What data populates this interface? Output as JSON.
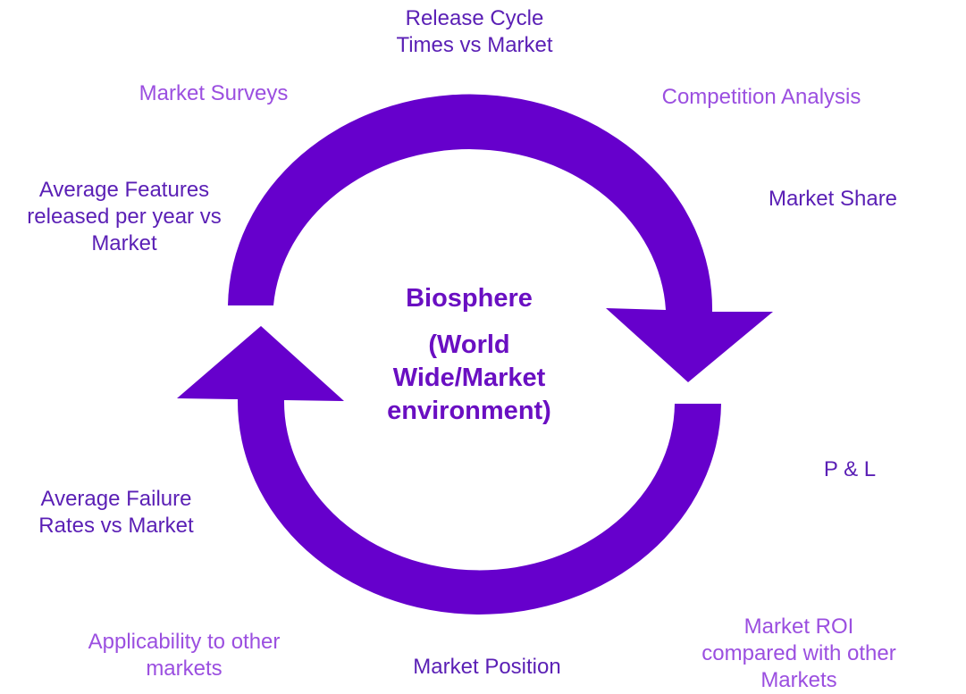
{
  "colors": {
    "arrow": "#6600cc",
    "label_dark": "#5a1fb5",
    "label_light": "#9b4fe0",
    "center_text": "#6a0fc2"
  },
  "center": {
    "title": "Biosphere",
    "subtitle": "(World\nWide/Market\nenvironment)"
  },
  "labels": {
    "release_cycle": "Release Cycle\nTimes vs Market",
    "market_surveys": "Market Surveys",
    "competition_analysis": "Competition Analysis",
    "avg_features": "Average Features\nreleased per year vs\nMarket",
    "market_share": "Market Share",
    "p_and_l": "P & L",
    "avg_failure": "Average Failure\nRates vs Market",
    "applicability": "Applicability to other\nmarkets",
    "market_position": "Market Position",
    "market_roi": "Market ROI\ncompared with other\nMarkets"
  }
}
